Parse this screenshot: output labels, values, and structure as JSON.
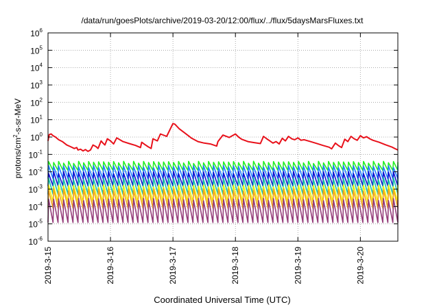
{
  "chart_data": {
    "type": "line",
    "title": "/data/run/goesPlots/archive/2019-03-20/12:00/flux/../flux/5daysMarsFluxes.txt",
    "xlabel": "Coordinated Universal Time (UTC)",
    "ylabel": "protons/cm²-s-sr-MeV",
    "ylabel_parts": {
      "base": "protons/cm",
      "sup": "2",
      "rest": "-s-sr-MeV"
    },
    "yscale": "log",
    "ylim_exp": [
      -6,
      6
    ],
    "yticks": [
      {
        "base": "10",
        "exp": "6",
        "value": 6
      },
      {
        "base": "10",
        "exp": "5",
        "value": 5
      },
      {
        "base": "10",
        "exp": "4",
        "value": 4
      },
      {
        "base": "10",
        "exp": "3",
        "value": 3
      },
      {
        "base": "10",
        "exp": "2",
        "value": 2
      },
      {
        "base": "10",
        "exp": "1",
        "value": 1
      },
      {
        "base": "10",
        "exp": "0",
        "value": 0
      },
      {
        "base": "10",
        "exp": "-1",
        "value": -1
      },
      {
        "base": "10",
        "exp": "-2",
        "value": -2
      },
      {
        "base": "10",
        "exp": "-3",
        "value": -3
      },
      {
        "base": "10",
        "exp": "-4",
        "value": -4
      },
      {
        "base": "10",
        "exp": "-5",
        "value": -5
      },
      {
        "base": "10",
        "exp": "-6",
        "value": -6
      }
    ],
    "xlim_days": [
      0,
      5.6
    ],
    "xticks": [
      {
        "label": "2019-3-15",
        "day": 0
      },
      {
        "label": "2019-3-16",
        "day": 1
      },
      {
        "label": "2019-3-17",
        "day": 2
      },
      {
        "label": "2019-3-18",
        "day": 3
      },
      {
        "label": "2019-3-19",
        "day": 4
      },
      {
        "label": "2019-3-20",
        "day": 5
      }
    ],
    "grid": true,
    "legend": "none",
    "colors": {
      "red": "#e8101a",
      "green": "#22ee22",
      "blue_light": "#1f7fff",
      "blue_dark": "#1010d0",
      "teal": "#17bfa6",
      "yellow": "#f4f20a",
      "orange": "#f2a21c",
      "purple": "#943c79"
    },
    "series": [
      {
        "color": "#e8101a",
        "x": [
          0.0,
          0.02,
          0.05,
          0.08,
          0.12,
          0.17,
          0.23,
          0.3,
          0.36,
          0.42,
          0.46,
          0.48,
          0.52,
          0.56,
          0.6,
          0.64,
          0.68,
          0.72,
          0.77,
          0.8,
          0.85,
          0.88,
          0.91,
          0.95,
          1.0,
          1.05,
          1.1,
          1.2,
          1.3,
          1.4,
          1.48,
          1.5,
          1.55,
          1.6,
          1.65,
          1.68,
          1.75,
          1.8,
          1.9,
          2.0,
          2.03,
          2.1,
          2.2,
          2.3,
          2.4,
          2.5,
          2.6,
          2.7,
          2.72,
          2.8,
          2.9,
          3.0,
          3.05,
          3.1,
          3.2,
          3.3,
          3.4,
          3.45,
          3.5,
          3.55,
          3.6,
          3.65,
          3.7,
          3.75,
          3.8,
          3.85,
          3.9,
          3.95,
          4.0,
          4.05,
          4.1,
          4.2,
          4.3,
          4.4,
          4.5,
          4.54,
          4.6,
          4.65,
          4.7,
          4.75,
          4.8,
          4.85,
          4.9,
          4.95,
          5.0,
          5.05,
          5.1,
          5.15,
          5.2,
          5.3,
          5.4,
          5.5,
          5.55,
          5.6
        ],
        "y": [
          0.6,
          1.4,
          1.5,
          1.2,
          1.0,
          0.7,
          0.55,
          0.35,
          0.28,
          0.22,
          0.25,
          0.18,
          0.2,
          0.16,
          0.19,
          0.15,
          0.18,
          0.35,
          0.28,
          0.22,
          0.6,
          0.45,
          0.35,
          0.8,
          0.6,
          0.4,
          0.9,
          0.55,
          0.42,
          0.33,
          0.25,
          0.5,
          0.37,
          0.28,
          0.22,
          0.8,
          0.6,
          1.5,
          1.1,
          6.0,
          5.5,
          3.0,
          1.6,
          0.85,
          0.55,
          0.45,
          0.4,
          0.3,
          0.55,
          1.3,
          0.95,
          1.5,
          1.0,
          0.75,
          0.55,
          0.48,
          0.42,
          1.1,
          0.8,
          0.6,
          0.45,
          0.55,
          0.4,
          0.85,
          0.6,
          1.1,
          0.8,
          0.7,
          0.9,
          0.65,
          0.7,
          0.55,
          0.43,
          0.33,
          0.26,
          0.21,
          0.45,
          0.32,
          0.25,
          0.75,
          0.55,
          1.1,
          0.8,
          0.65,
          1.2,
          0.9,
          1.05,
          0.8,
          0.65,
          0.5,
          0.36,
          0.27,
          0.22,
          0.18
        ]
      },
      {
        "color": "#22ee22",
        "sawtooth": {
          "period_days": 0.08,
          "low": 0.012,
          "high": 0.035
        }
      },
      {
        "color": "#1f7fff",
        "sawtooth": {
          "period_days": 0.08,
          "low": 0.004,
          "high": 0.02
        }
      },
      {
        "color": "#1010d0",
        "sawtooth": {
          "period_days": 0.08,
          "low": 0.0015,
          "high": 0.009
        }
      },
      {
        "color": "#17bfa6",
        "sawtooth": {
          "period_days": 0.08,
          "low": 0.0005,
          "high": 0.004
        }
      },
      {
        "color": "#f4f20a",
        "sawtooth": {
          "period_days": 0.08,
          "low": 0.00018,
          "high": 0.0015
        }
      },
      {
        "color": "#f2a21c",
        "sawtooth": {
          "period_days": 0.08,
          "low": 8e-05,
          "high": 0.0009
        }
      },
      {
        "color": "#943c79",
        "sawtooth": {
          "period_days": 0.08,
          "low": 1.2e-05,
          "high": 0.00025
        }
      }
    ]
  }
}
